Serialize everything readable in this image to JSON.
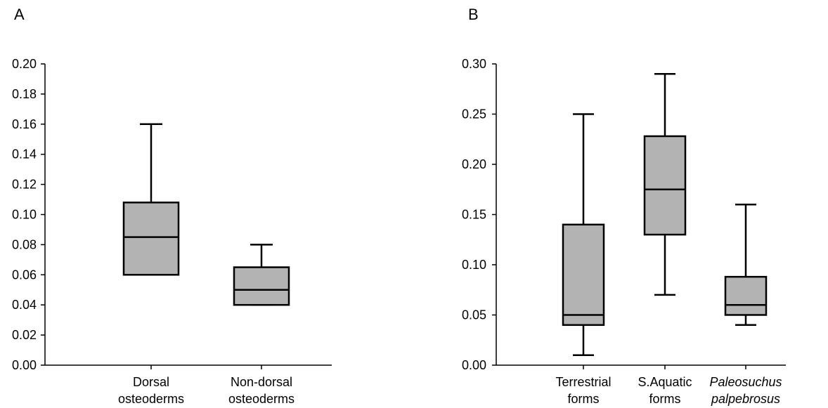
{
  "figure": {
    "panels": [
      {
        "label": "A"
      },
      {
        "label": "B"
      }
    ]
  },
  "chart_data": [
    {
      "type": "box",
      "panel": "A",
      "title": "",
      "xlabel": "",
      "ylabel": "",
      "ylim": [
        0,
        0.2
      ],
      "y_ticks": [
        0.0,
        0.02,
        0.04,
        0.06,
        0.08,
        0.1,
        0.12,
        0.14,
        0.16,
        0.18,
        0.2
      ],
      "y_tick_labels": [
        "0.00",
        "0.02",
        "0.04",
        "0.06",
        "0.08",
        "0.10",
        "0.12",
        "0.14",
        "0.16",
        "0.18",
        "0.20"
      ],
      "grid": false,
      "box_color": "#b3b3b3",
      "categories": [
        {
          "lines": [
            "Dorsal",
            "osteoderms"
          ],
          "italic": false
        },
        {
          "lines": [
            "Non-dorsal",
            "osteoderms"
          ],
          "italic": false
        }
      ],
      "boxes": [
        {
          "whisker_low": 0.06,
          "q1": 0.06,
          "median": 0.085,
          "q3": 0.108,
          "whisker_high": 0.16
        },
        {
          "whisker_low": 0.04,
          "q1": 0.04,
          "median": 0.05,
          "q3": 0.065,
          "whisker_high": 0.08
        }
      ]
    },
    {
      "type": "box",
      "panel": "B",
      "title": "",
      "xlabel": "",
      "ylabel": "",
      "ylim": [
        0,
        0.3
      ],
      "y_ticks": [
        0.0,
        0.05,
        0.1,
        0.15,
        0.2,
        0.25,
        0.3
      ],
      "y_tick_labels": [
        "0.00",
        "0.05",
        "0.10",
        "0.15",
        "0.20",
        "0.25",
        "0.30"
      ],
      "grid": false,
      "box_color": "#b3b3b3",
      "categories": [
        {
          "lines": [
            "Terrestrial",
            "forms"
          ],
          "italic": false
        },
        {
          "lines": [
            "S.Aquatic",
            "forms"
          ],
          "italic": false
        },
        {
          "lines": [
            "Paleosuchus",
            "palpebrosus"
          ],
          "italic": true
        }
      ],
      "boxes": [
        {
          "whisker_low": 0.01,
          "q1": 0.04,
          "median": 0.05,
          "q3": 0.14,
          "whisker_high": 0.25
        },
        {
          "whisker_low": 0.07,
          "q1": 0.13,
          "median": 0.175,
          "q3": 0.228,
          "whisker_high": 0.29
        },
        {
          "whisker_low": 0.04,
          "q1": 0.05,
          "median": 0.06,
          "q3": 0.088,
          "whisker_high": 0.16
        }
      ]
    }
  ]
}
